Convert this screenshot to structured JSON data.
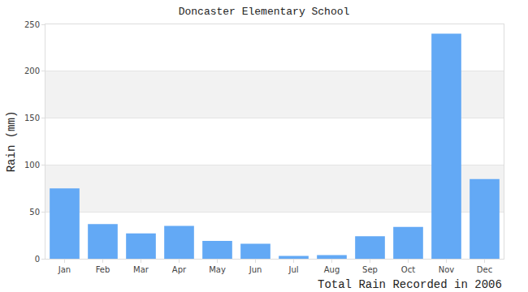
{
  "chart_data": {
    "type": "bar",
    "title": "Doncaster Elementary School",
    "ylabel": "Rain (mm)",
    "xlabel": "Total Rain Recorded in 2006",
    "categories": [
      "Jan",
      "Feb",
      "Mar",
      "Apr",
      "May",
      "Jun",
      "Jul",
      "Aug",
      "Sep",
      "Oct",
      "Nov",
      "Dec"
    ],
    "values": [
      75,
      37,
      27,
      35,
      19,
      16,
      3,
      4,
      24,
      34,
      240,
      85
    ],
    "color": "#63a9f5",
    "ylim": [
      0,
      250
    ],
    "yticks": [
      0,
      50,
      100,
      150,
      200,
      250
    ],
    "grid": true
  }
}
